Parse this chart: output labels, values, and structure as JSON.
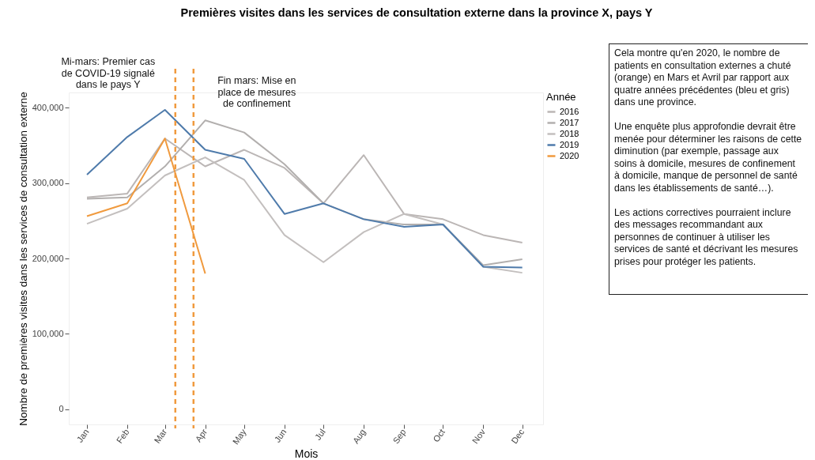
{
  "chart_data": {
    "type": "line",
    "title": "Premières visites dans les services de consultation externe dans la province X, pays Y",
    "xlabel": "Mois",
    "ylabel": "Nombre de premières visites dans les services de consultation externe",
    "legend_title": "Année",
    "legend": "right",
    "x": [
      "--01-15",
      "--02-15",
      "--03-15",
      "--04-15",
      "--05-15",
      "--06-15",
      "--07-15",
      "--08-15",
      "--09-15",
      "--10-15",
      "--11-15",
      "--12-15"
    ],
    "xlim": [
      "--01-01",
      "--12-31"
    ],
    "xticks": [
      {
        "value": "--01-15",
        "label": "Jan"
      },
      {
        "value": "--02-15",
        "label": "Feb"
      },
      {
        "value": "--03-15",
        "label": "Mar"
      },
      {
        "value": "--04-15",
        "label": "Apr"
      },
      {
        "value": "--05-15",
        "label": "May"
      },
      {
        "value": "--06-15",
        "label": "Jun"
      },
      {
        "value": "--07-15",
        "label": "Jul"
      },
      {
        "value": "--08-15",
        "label": "Aug"
      },
      {
        "value": "--09-15",
        "label": "Sep"
      },
      {
        "value": "--10-15",
        "label": "Oct"
      },
      {
        "value": "--11-15",
        "label": "Nov"
      },
      {
        "value": "--12-15",
        "label": "Dec"
      }
    ],
    "ylim": [
      -20000,
      420000
    ],
    "yticks": [
      {
        "value": 0,
        "label": "0"
      },
      {
        "value": 100000,
        "label": "100,000"
      },
      {
        "value": 200000,
        "label": "200,000"
      },
      {
        "value": 300000,
        "label": "300,000"
      },
      {
        "value": 400000,
        "label": "400,000"
      }
    ],
    "series": [
      {
        "name": "2016",
        "color": "#bbb6b5",
        "values": [
          281000,
          286000,
          359000,
          322000,
          344000,
          320000,
          273000,
          337000,
          259000,
          252000,
          231000,
          221000
        ]
      },
      {
        "name": "2017",
        "color": "#b2afae",
        "values": [
          279000,
          281000,
          322000,
          383000,
          367000,
          325000,
          273000,
          252000,
          245000,
          245000,
          191000,
          199000
        ]
      },
      {
        "name": "2018",
        "color": "#c3bfbe",
        "values": [
          246000,
          266000,
          310000,
          334000,
          304000,
          231000,
          195000,
          235000,
          259000,
          245000,
          189000,
          181000
        ]
      },
      {
        "name": "2019",
        "color": "#4f7bab",
        "values": [
          311000,
          361000,
          397000,
          344000,
          332000,
          259000,
          273000,
          252000,
          242000,
          245000,
          189000,
          188000
        ]
      },
      {
        "name": "2020",
        "color": "#f09a3e",
        "values": [
          256000,
          273000,
          359000,
          180000,
          null,
          null,
          null,
          null,
          null,
          null,
          null,
          null
        ]
      }
    ],
    "ref_lines": [
      {
        "axis": "x",
        "value": "--03-23",
        "label": "Mi-mars: Premier cas\nde COVID-19 signalé\ndans le pays Y",
        "color": "#f09a3e",
        "line_style": "dashed"
      },
      {
        "axis": "x",
        "value": "--04-06",
        "label": "Fin mars: Mise en\nplace de mesures\nde confinement",
        "color": "#f09a3e",
        "line_style": "dashed"
      }
    ],
    "annotations": [
      "Cela montre qu'en 2020, le nombre de patients en consultation externes a chuté (orange) en Mars et Avril par rapport aux quatre années précédentes (bleu et gris) dans une province.\n\nUne enquête plus approfondie devrait être menée pour déterminer les raisons de cette diminution (par exemple, passage aux soins à domicile, mesures de confinement à domicile, manque de personnel de santé dans les établissements de santé…).\n\nLes actions correctives pourraient inclure des messages recommandant aux personnes de continuer à utiliser les services de santé et décrivant les mesures prises pour protéger les patients."
    ]
  }
}
